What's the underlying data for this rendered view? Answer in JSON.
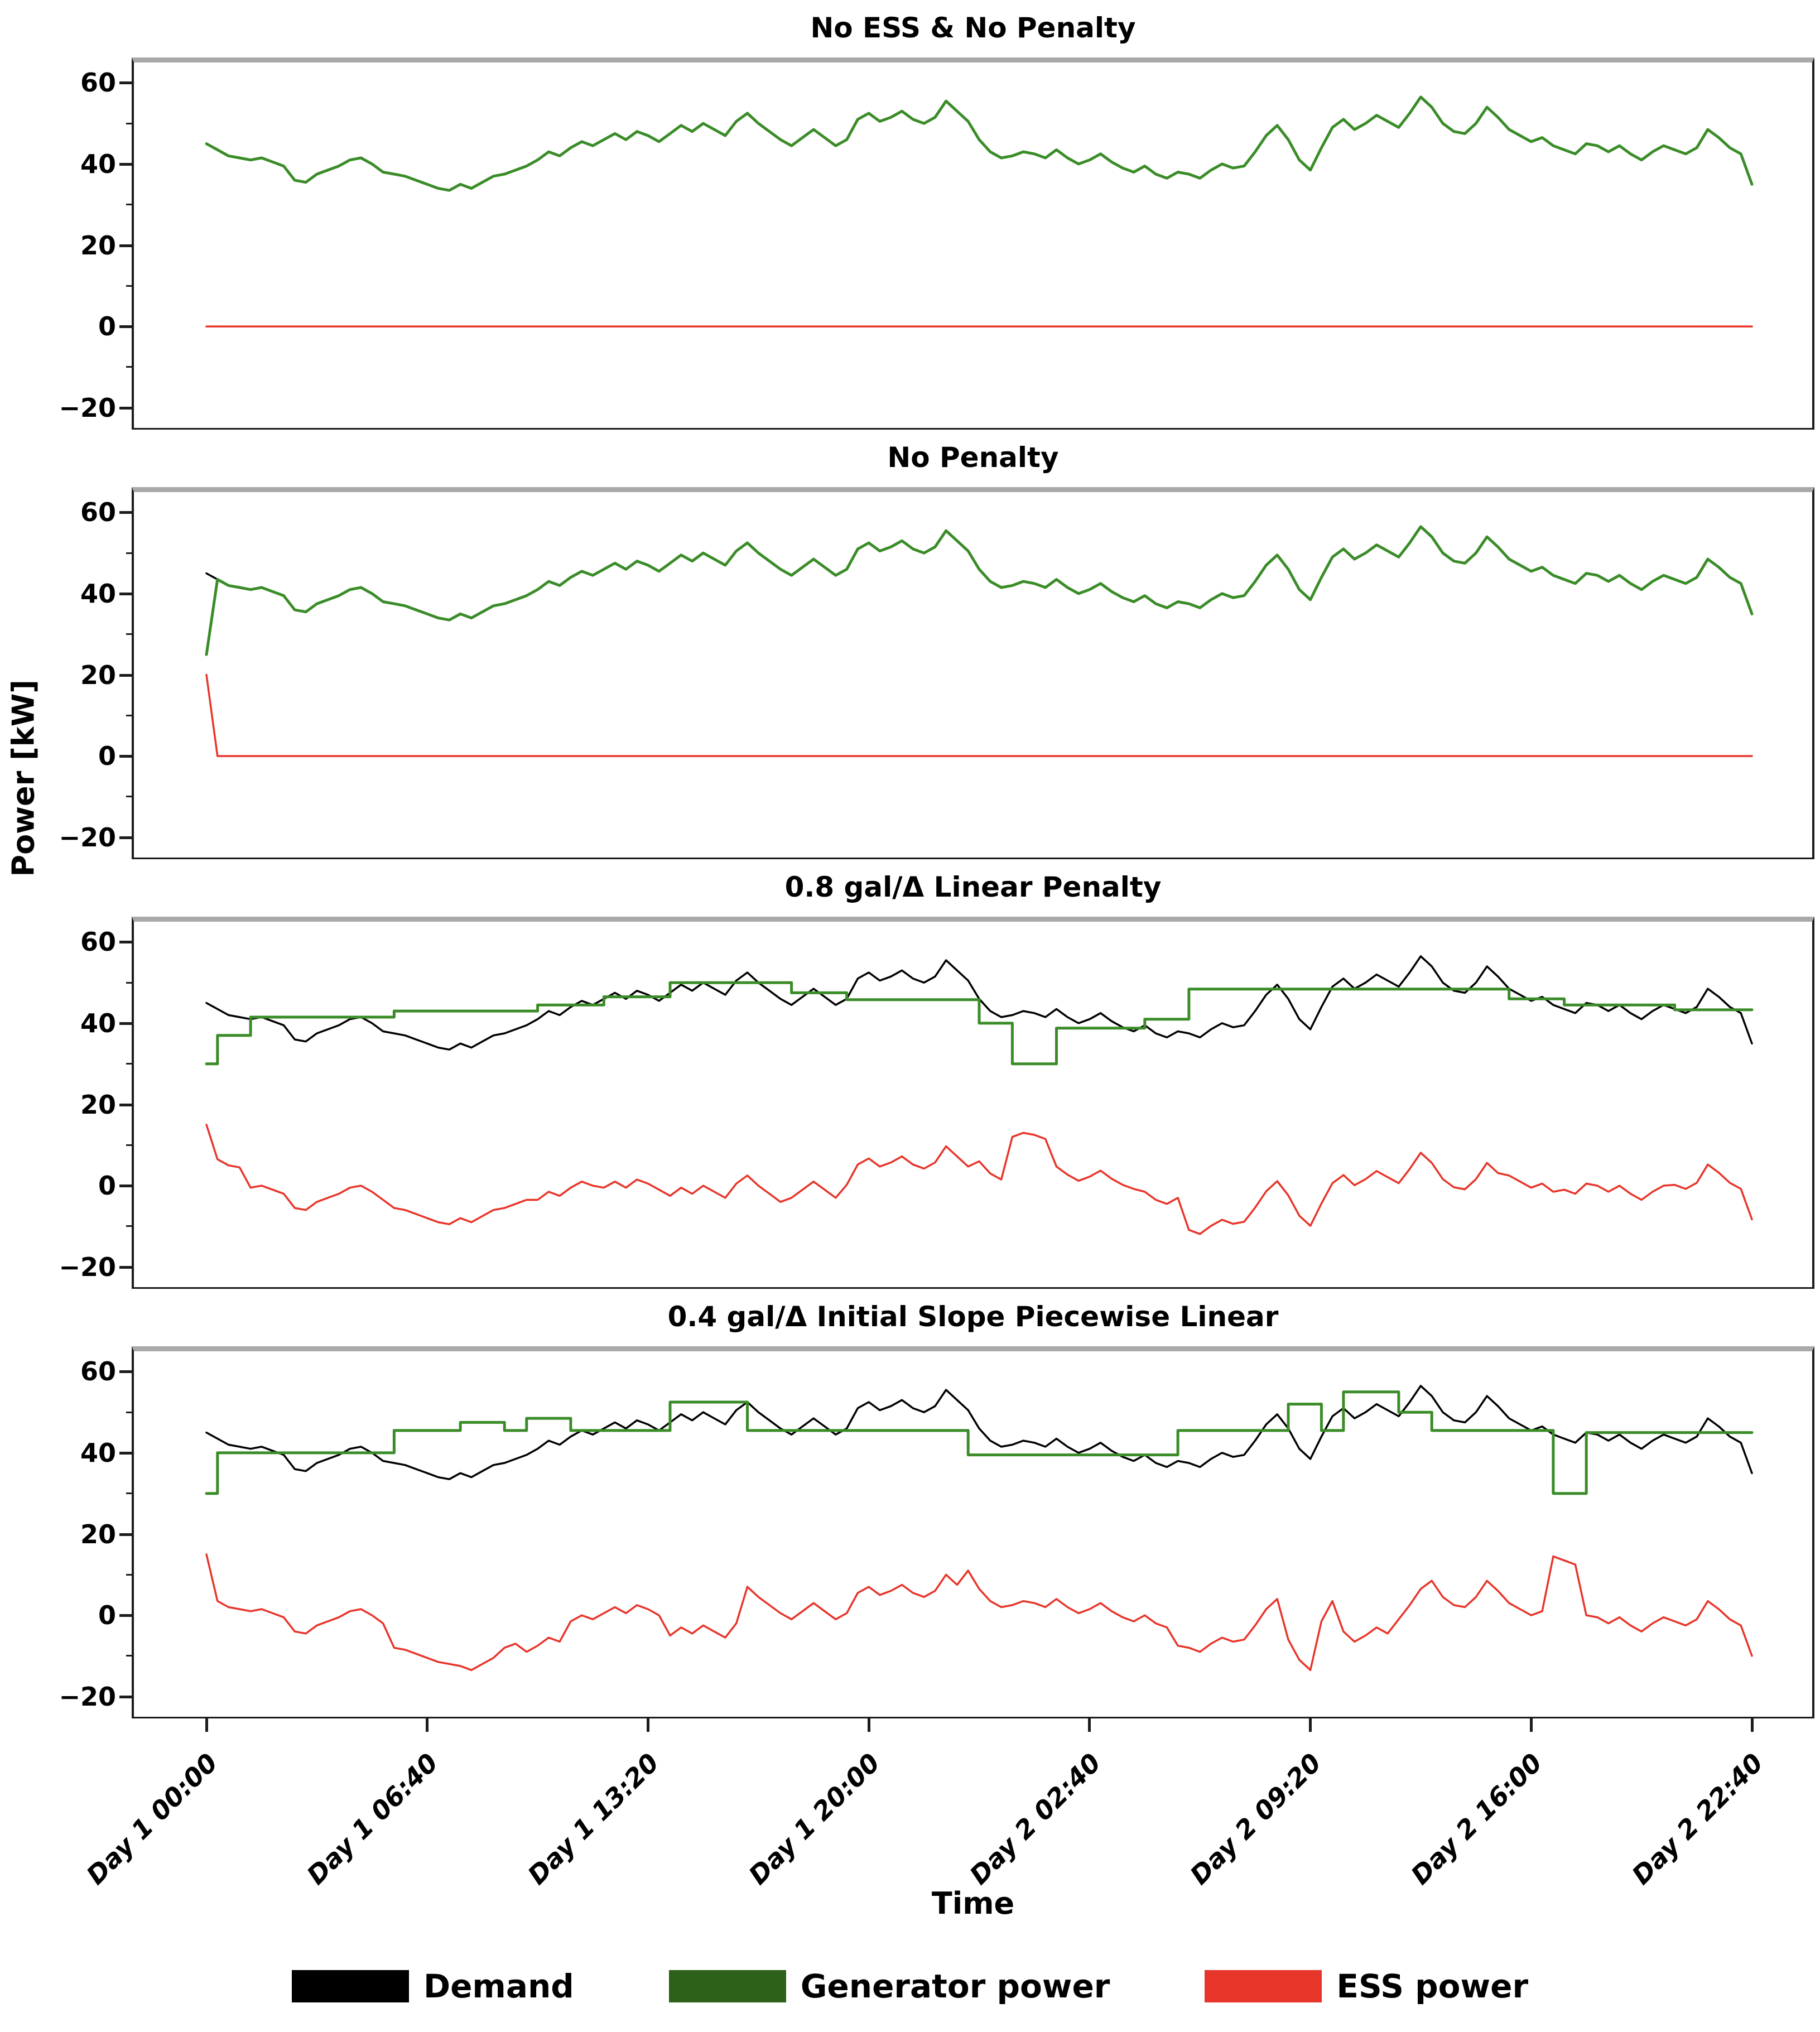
{
  "chart_data": {
    "type": "line",
    "xlabel": "Time",
    "ylabel": "Power [kW]",
    "ylim": [
      -25,
      65
    ],
    "yticks": [
      60,
      40,
      20,
      0,
      -20
    ],
    "x_tick_labels": [
      "Day 1 00:00",
      "Day 1 06:40",
      "Day 1 13:20",
      "Day 1 20:00",
      "Day 2 02:40",
      "Day 2 09:20",
      "Day 2 16:00",
      "Day 2 22:40"
    ],
    "colors": {
      "demand": "#000000",
      "generator_line": "#3a8c28",
      "generator_swatch": "#2d611a",
      "ess": "#e8352a",
      "spine_top": "#a9a9a9"
    },
    "demand_kw": [
      45,
      43.5,
      42,
      41.5,
      41,
      41.5,
      40.5,
      39.5,
      36,
      35.5,
      37.5,
      38.5,
      39.5,
      41,
      41.5,
      40,
      38,
      37.5,
      37,
      36,
      35,
      34,
      33.5,
      35,
      34,
      35.5,
      37,
      37.5,
      38.5,
      39.5,
      41,
      43,
      42,
      44,
      45.5,
      44.5,
      46,
      47.5,
      46,
      48,
      47,
      45.5,
      47.5,
      49.5,
      48,
      50,
      48.5,
      47,
      50.5,
      52.5,
      50,
      48,
      46,
      44.5,
      46.5,
      48.5,
      46.5,
      44.5,
      46,
      51,
      52.5,
      50.5,
      51.5,
      53,
      51,
      50,
      51.5,
      55.5,
      53,
      50.5,
      46,
      43,
      41.5,
      42,
      43,
      42.5,
      41.5,
      43.5,
      41.5,
      40,
      41,
      42.5,
      40.5,
      39,
      38,
      39.5,
      37.5,
      36.5,
      38,
      37.5,
      36.5,
      38.5,
      40,
      39,
      39.5,
      43,
      47,
      49.5,
      46,
      41,
      38.5,
      44,
      49,
      51,
      48.5,
      50,
      52,
      50.5,
      49,
      52.5,
      56.5,
      54,
      50,
      48,
      47.5,
      50,
      54,
      51.5,
      48.5,
      47,
      45.5,
      46.5,
      44.5,
      43.5,
      42.5,
      45,
      44.5,
      43,
      44.5,
      42.5,
      41,
      43,
      44.5,
      43.5,
      42.5,
      44,
      48.5,
      46.5,
      44,
      42.5,
      35
    ],
    "panels": [
      {
        "title": "No ESS & No Penalty",
        "show_demand": false,
        "generator": "demand",
        "ess": "demand_minus_generator"
      },
      {
        "title": "No Penalty",
        "show_demand": true,
        "generator": "demand",
        "generator_start_kw": 25,
        "ess": "demand_minus_generator"
      },
      {
        "title": "0.8 gal/Δ Linear Penalty",
        "show_demand": true,
        "generator_steps": [
          [
            0,
            1,
            30
          ],
          [
            1,
            4,
            37
          ],
          [
            4,
            17,
            41.5
          ],
          [
            17,
            30,
            43
          ],
          [
            30,
            36,
            44.5
          ],
          [
            36,
            42,
            46.5
          ],
          [
            42,
            53,
            50
          ],
          [
            53,
            58,
            47.5
          ],
          [
            58,
            70,
            45.8
          ],
          [
            70,
            73,
            40
          ],
          [
            73,
            77,
            30
          ],
          [
            77,
            85,
            38.8
          ],
          [
            85,
            89,
            41
          ],
          [
            89,
            118,
            48.4
          ],
          [
            118,
            123,
            46
          ],
          [
            123,
            133,
            44.5
          ],
          [
            133,
            140,
            43.3
          ]
        ],
        "ess": "demand_minus_generator"
      },
      {
        "title": "0.4 gal/Δ Initial Slope Piecewise Linear",
        "show_demand": true,
        "generator_steps": [
          [
            0,
            1,
            30
          ],
          [
            1,
            17,
            40
          ],
          [
            17,
            23,
            45.5
          ],
          [
            23,
            27,
            47.5
          ],
          [
            27,
            29,
            45.5
          ],
          [
            29,
            33,
            48.5
          ],
          [
            33,
            42,
            45.5
          ],
          [
            42,
            49,
            52.5
          ],
          [
            49,
            69,
            45.5
          ],
          [
            69,
            88,
            39.5
          ],
          [
            88,
            98,
            45.5
          ],
          [
            98,
            101,
            52
          ],
          [
            101,
            103,
            45.5
          ],
          [
            103,
            108,
            55
          ],
          [
            108,
            111,
            50
          ],
          [
            111,
            122,
            45.5
          ],
          [
            122,
            125,
            30
          ],
          [
            125,
            140,
            45
          ]
        ],
        "ess": "demand_minus_generator"
      }
    ],
    "legend": {
      "items": [
        {
          "label": "Demand",
          "color": "#000000"
        },
        {
          "label": "Generator power",
          "color": "#2d611a"
        },
        {
          "label": "ESS power",
          "color": "#e8352a"
        }
      ],
      "position": "bottom-center"
    },
    "grid": false
  }
}
